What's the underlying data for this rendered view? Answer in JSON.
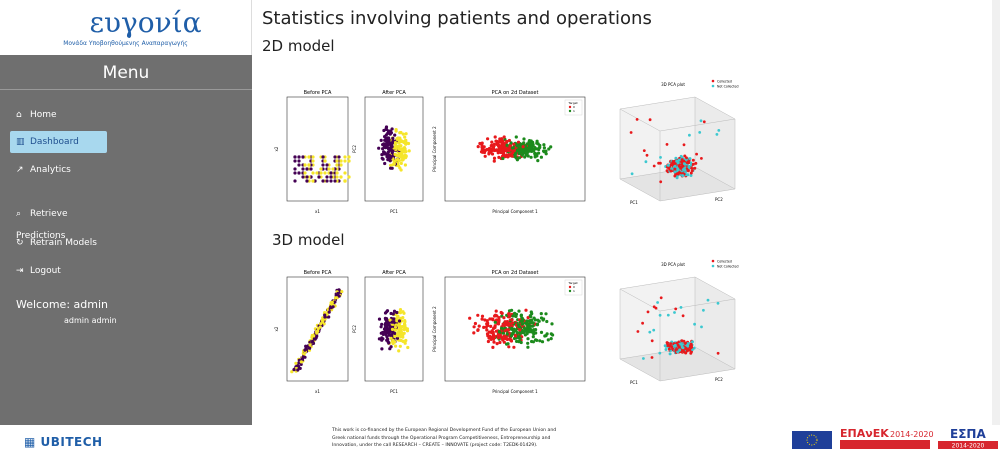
{
  "sidebar": {
    "logo": "ευγονία",
    "logo_subtitle": "Μονάδα Υποβοηθούμενης Αναπαραγωγής",
    "menu_title": "Menu",
    "menu": [
      "Home",
      "Dashboard",
      "Analytics",
      "Retrieve Predictions",
      "Retrain Models",
      "Logout"
    ],
    "welcome": "Welcome: admin",
    "user": "admin admin"
  },
  "main": {
    "title": "Statistics involving patients and operations",
    "sections": [
      {
        "heading": "2D model",
        "plots": [
          {
            "title": "Before PCA",
            "xlabel": "x1",
            "ylabel": "x2"
          },
          {
            "title": "After PCA",
            "xlabel": "PC1",
            "ylabel": "PC2"
          },
          {
            "title": "PCA on 2d Dataset",
            "xlabel": "Principal Component 1",
            "ylabel": "Principal Component 2",
            "legend_title": "Target",
            "legend": [
              "0",
              "1"
            ]
          },
          {
            "title": "3D PCA plot",
            "xlabel": "PC1",
            "ylabel": "PC2",
            "legend": [
              "Collected",
              "Not Collected"
            ]
          }
        ]
      },
      {
        "heading": "3D model",
        "plots": [
          {
            "title": "Before PCA",
            "xlabel": "x1",
            "ylabel": "x2"
          },
          {
            "title": "After PCA",
            "xlabel": "PC1",
            "ylabel": "PC2"
          },
          {
            "title": "PCA on 2d Dataset",
            "xlabel": "Principal Component 1",
            "ylabel": "Principal Component 2",
            "legend_title": "Target",
            "legend": [
              "0",
              "1"
            ]
          },
          {
            "title": "3D PCA plot",
            "xlabel": "PC1",
            "ylabel": "PC2",
            "legend": [
              "Collected",
              "Not Collected"
            ]
          }
        ]
      }
    ]
  },
  "footer": {
    "text": "This work is co-financed by the European Regional Development Fund of the European Union and Greek national funds through the Operational Program Competitiveness, Entrepreneurship and Innovation, under the call RESEARCH – CREATE – INNOVATE (project code: T2EDK-01429).",
    "partner": "UBITECH",
    "epanek": "ΕΠΑνΕΚ",
    "espa": "ΕΣΠΑ",
    "years": "2014-2020"
  }
}
